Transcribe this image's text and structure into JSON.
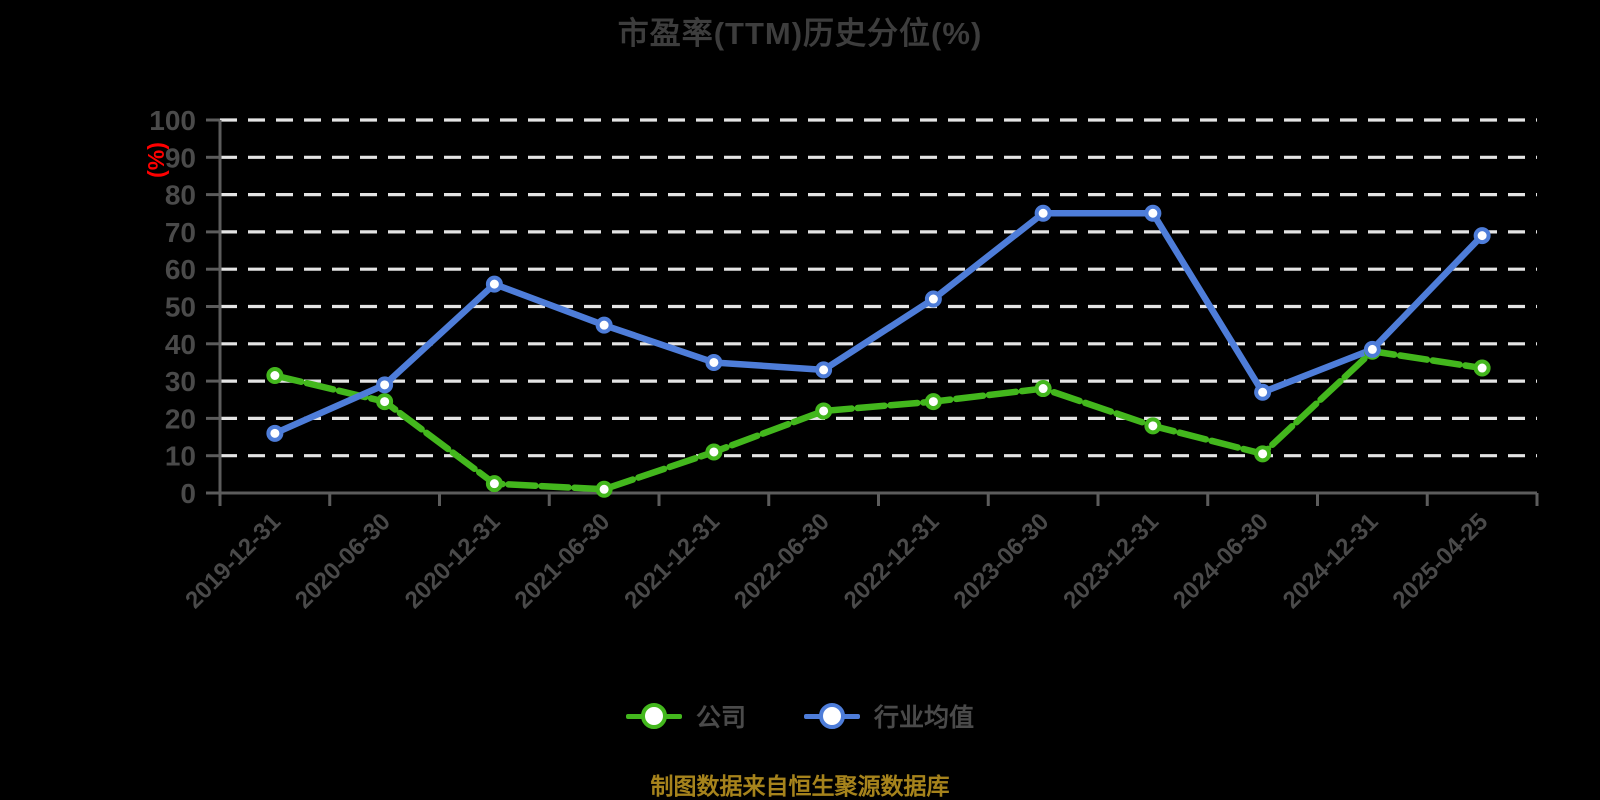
{
  "title": "市盈率(TTM)历史分位(%)",
  "y_axis": {
    "unit_label": "(%)",
    "unit_color": "#ff0000",
    "tick_labels": [
      "0",
      "10",
      "20",
      "30",
      "40",
      "50",
      "60",
      "70",
      "80",
      "90",
      "100"
    ]
  },
  "source_note": "制图数据来自恒生聚源数据库",
  "legend": {
    "items": [
      {
        "label": "公司",
        "color": "#43b71d"
      },
      {
        "label": "行业均值",
        "color": "#4e7dd9"
      }
    ]
  },
  "colors": {
    "background": "#000000",
    "title_text": "#3d3d3d",
    "axis_line": "#5c5c5c",
    "tick_label": "#4a4a4a",
    "gridline": "#e4e4e4",
    "company_series": "#43b71d",
    "industry_series": "#4e7dd9",
    "marker_fill": "#ffffff",
    "caption_text": "#a6831c",
    "y_unit_text": "#ff0000"
  },
  "chart_data": {
    "type": "line",
    "title": "市盈率(TTM)历史分位(%)",
    "ylabel": "(%)",
    "ylim": [
      0,
      100
    ],
    "ytick_step": 10,
    "grid": "horizontal-dashed-white",
    "legend_position": "bottom",
    "categories": [
      "2019-12-31",
      "2020-06-30",
      "2020-12-31",
      "2021-06-30",
      "2021-12-31",
      "2022-06-30",
      "2022-12-31",
      "2023-06-30",
      "2023-12-31",
      "2024-06-30",
      "2024-12-31",
      "2025-04-25"
    ],
    "series": [
      {
        "name": "公司",
        "color": "#43b71d",
        "line_style": "dashed",
        "marker": "circle-white-fill",
        "values": [
          31.5,
          24.5,
          2.5,
          1,
          11,
          22,
          24.5,
          28,
          18,
          10.5,
          38,
          33.5
        ]
      },
      {
        "name": "行业均值",
        "color": "#4e7dd9",
        "line_style": "solid",
        "marker": "circle-white-fill",
        "values": [
          16,
          29,
          56,
          45,
          35,
          33,
          52,
          75,
          75,
          27,
          38.5,
          69
        ]
      }
    ]
  }
}
